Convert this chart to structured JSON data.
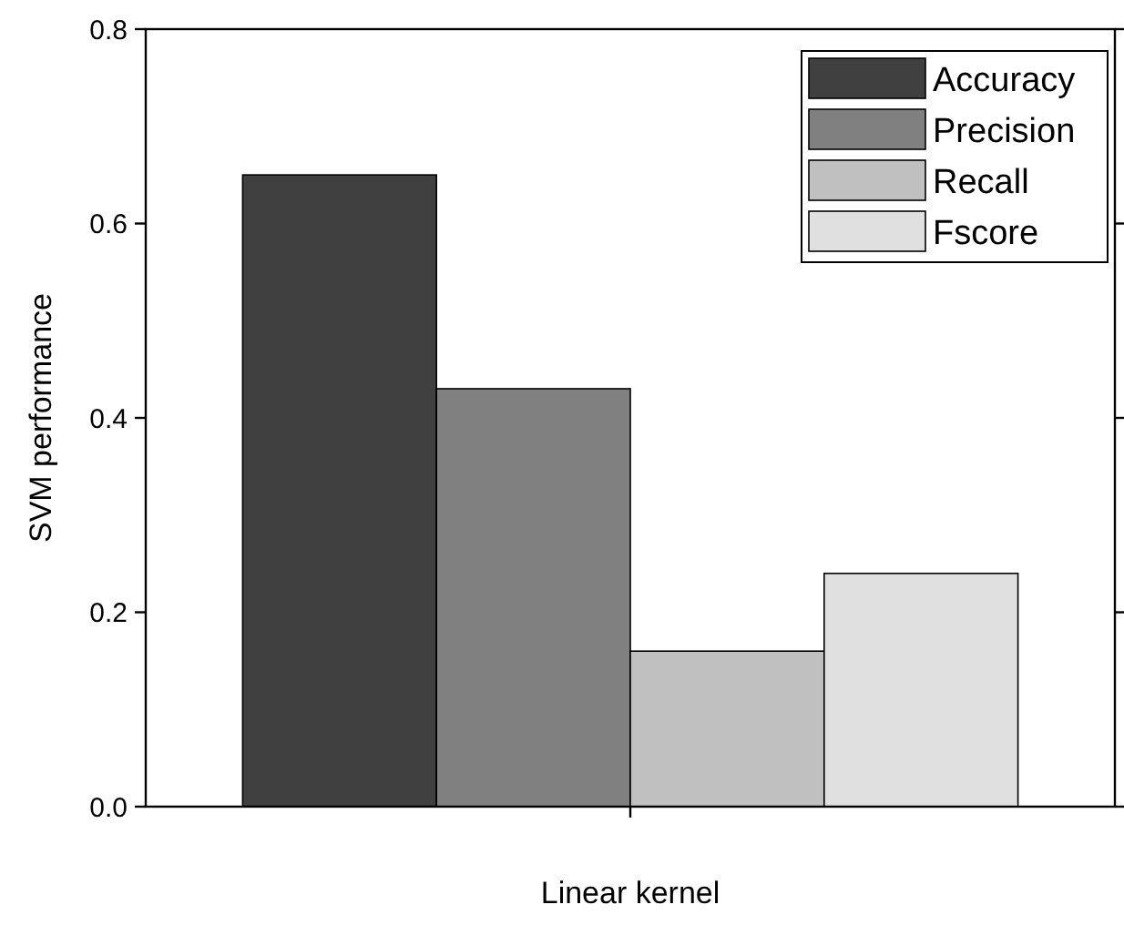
{
  "chart_data": {
    "type": "bar",
    "xlabel": "Linear kernel",
    "ylabel": "SVM performance",
    "categories": [
      null
    ],
    "series": [
      {
        "name": "Accuracy",
        "color": "#404040",
        "values": [
          0.65
        ]
      },
      {
        "name": "Precision",
        "color": "#808080",
        "values": [
          0.43
        ]
      },
      {
        "name": "Recall",
        "color": "#c0c0c0",
        "values": [
          0.16
        ]
      },
      {
        "name": "Fscore",
        "color": "#e0e0e0",
        "values": [
          0.24
        ]
      }
    ],
    "ylim": [
      0,
      0.8
    ],
    "yticks": [
      {
        "value": 0,
        "label": "0.0"
      },
      {
        "value": 0.2,
        "label": "0.2"
      },
      {
        "value": 0.4,
        "label": "0.4"
      },
      {
        "value": 0.6,
        "label": "0.6"
      },
      {
        "value": 0.8,
        "label": "0.8"
      }
    ],
    "tick_labels": "y",
    "grid": false,
    "legend": "top right"
  }
}
